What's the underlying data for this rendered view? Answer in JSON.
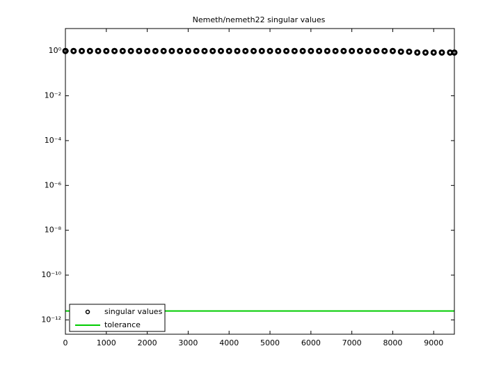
{
  "chart_data": {
    "type": "line",
    "title": "Nemeth/nemeth22 singular values",
    "xlim": [
      0,
      9506
    ],
    "xticks": [
      0,
      1000,
      2000,
      3000,
      4000,
      5000,
      6000,
      7000,
      8000,
      9000
    ],
    "ylim": [
      2.3e-13,
      10
    ],
    "log_y": true,
    "yticks": [
      {
        "value": 1,
        "label": "10⁰"
      },
      {
        "value": 0.01,
        "label": "10⁻²"
      },
      {
        "value": 0.0001,
        "label": "10⁻⁴"
      },
      {
        "value": 1e-06,
        "label": "10⁻⁶"
      },
      {
        "value": 1e-08,
        "label": "10⁻⁸"
      },
      {
        "value": 1e-10,
        "label": "10⁻¹⁰"
      },
      {
        "value": 1e-12,
        "label": "10⁻¹²"
      }
    ],
    "legend": "lower left",
    "series": [
      {
        "name": "singular values",
        "color": "#000000",
        "marker": "circle",
        "x": [
          1,
          200,
          400,
          600,
          800,
          1000,
          1200,
          1400,
          1600,
          1800,
          2000,
          2200,
          2400,
          2600,
          2800,
          3000,
          3200,
          3400,
          3600,
          3800,
          4000,
          4200,
          4400,
          4600,
          4800,
          5000,
          5200,
          5400,
          5600,
          5800,
          6000,
          6200,
          6400,
          6600,
          6800,
          7000,
          7200,
          7400,
          7600,
          7800,
          8000,
          8200,
          8400,
          8600,
          8800,
          9000,
          9200,
          9400,
          9506
        ],
        "values": [
          1,
          1,
          1,
          1,
          1,
          1,
          1,
          1,
          1,
          1,
          1,
          1,
          1,
          1,
          1,
          1,
          1,
          1,
          1,
          1,
          1,
          1,
          1,
          1,
          1,
          1,
          1,
          1,
          1,
          1,
          1,
          1,
          1,
          1,
          1,
          1,
          1,
          1,
          1,
          1,
          1,
          0.93,
          0.93,
          0.85,
          0.85,
          0.85,
          0.85,
          0.85,
          0.85
        ]
      },
      {
        "name": "tolerance",
        "color": "#00cc00",
        "marker": "line",
        "x": [
          0,
          9506
        ],
        "values": [
          2.5e-12,
          2.5e-12
        ]
      }
    ]
  }
}
